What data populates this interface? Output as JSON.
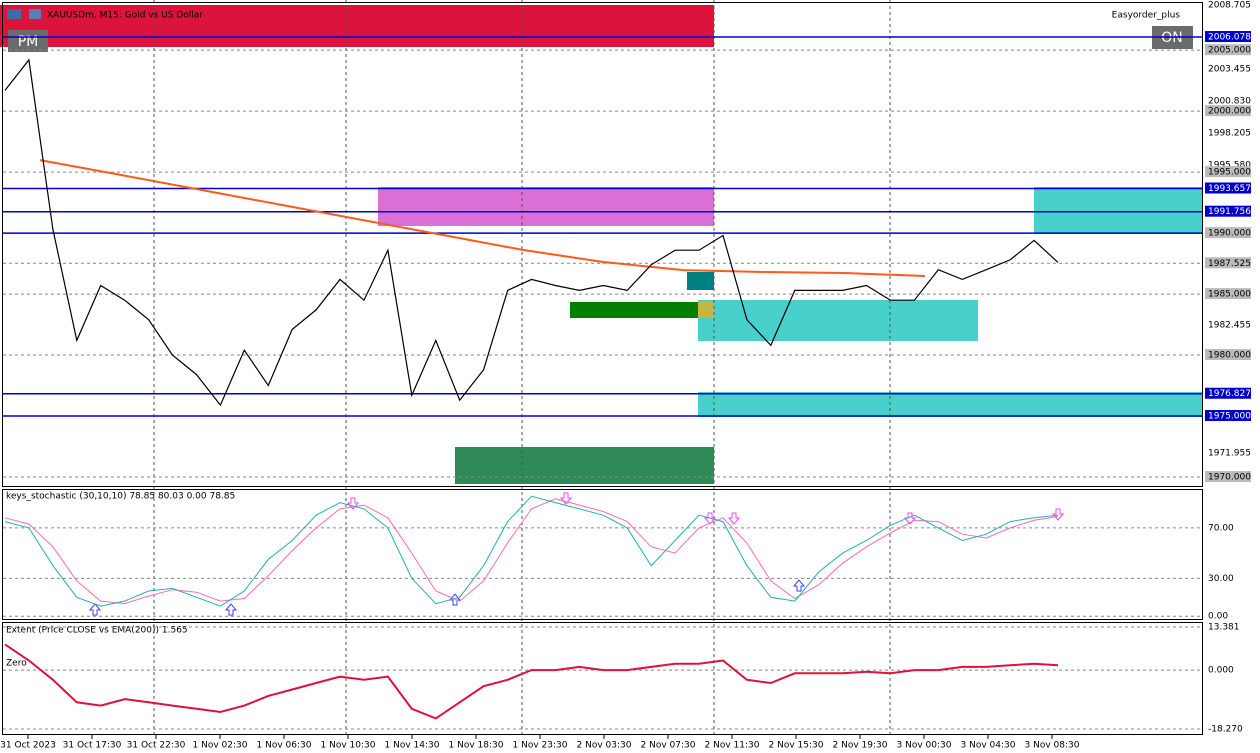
{
  "header": {
    "symbol": "XAUUSDm, M15:  Gold vs US Dollar",
    "expert": "Easyorder_plus",
    "left_button": "PM",
    "right_button": "ON"
  },
  "main_panel": {
    "ylim": [
      1969.18,
      2009.115
    ],
    "price_labels": [
      {
        "value": 2008.705,
        "label": "2008.705"
      },
      {
        "value": 2006.078,
        "label": "2006.078"
      },
      {
        "value": 2005,
        "label": "2005.000"
      },
      {
        "value": 2003.455,
        "label": "2003.455"
      },
      {
        "value": 2000.83,
        "label": "2000.830"
      },
      {
        "value": 2000,
        "label": "2000.000"
      },
      {
        "value": 1998.205,
        "label": "1998.205"
      },
      {
        "value": 1995.58,
        "label": "1995.580"
      },
      {
        "value": 1995,
        "label": "1995.000"
      },
      {
        "value": 1993.657,
        "label": "1993.657"
      },
      {
        "value": 1991.756,
        "label": "1991.756"
      },
      {
        "value": 1990,
        "label": "1990.000"
      },
      {
        "value": 1987.525,
        "label": "1987.525"
      },
      {
        "value": 1985,
        "label": "1985.000"
      },
      {
        "value": 1982.455,
        "label": "1982.455"
      },
      {
        "value": 1980,
        "label": "1980.000"
      },
      {
        "value": 1976.827,
        "label": "1976.827"
      },
      {
        "value": 1975,
        "label": "1975.000"
      },
      {
        "value": 1971.955,
        "label": "1971.955"
      },
      {
        "value": 1970,
        "label": "1970.000"
      }
    ],
    "close": [
      2001.7,
      2004.2,
      1990.3,
      1981.2,
      1985.7,
      1984.5,
      1982.9,
      1980.0,
      1978.4,
      1975.9,
      1980.4,
      1977.5,
      1982.1,
      1983.7,
      1986.2,
      1984.5,
      1988.6,
      1976.7,
      1981.2,
      1976.3,
      1978.8,
      1985.3,
      1986.2,
      1985.7,
      1985.3,
      1985.7,
      1985.3,
      1987.4,
      1988.6,
      1988.6,
      1989.8,
      1982.9,
      1980.8,
      1985.3,
      1985.3,
      1985.3,
      1985.7,
      1984.5,
      1984.5,
      1987.0,
      1986.2,
      1987.0,
      1987.8,
      1989.4,
      1987.6
    ],
    "ema": [
      1995.99,
      1994.77,
      1993.54,
      1992.31,
      1991.08,
      1989.85,
      1988.62,
      1987.63,
      1986.97,
      1986.81,
      1986.73,
      1986.48
    ]
  },
  "stochastic_panel": {
    "title": "keys_stochastic (30,10,10) 78.85 80.03 0.00 78.85",
    "ylim": [
      -3,
      100
    ],
    "ticks": [
      {
        "value": 70,
        "label": "70.00"
      },
      {
        "value": 30,
        "label": "30.00"
      },
      {
        "value": 0,
        "label": "0.00"
      }
    ],
    "main": [
      75,
      70,
      40,
      15,
      8,
      12,
      20,
      22,
      15,
      8,
      20,
      45,
      60,
      80,
      90,
      85,
      70,
      30,
      10,
      15,
      40,
      75,
      95,
      90,
      85,
      80,
      70,
      40,
      60,
      80,
      75,
      40,
      15,
      12,
      35,
      50,
      60,
      72,
      80,
      70,
      60,
      65,
      75,
      78,
      80
    ],
    "signal": [
      78,
      73,
      55,
      28,
      12,
      10,
      16,
      21,
      19,
      12,
      14,
      32,
      52,
      70,
      85,
      88,
      78,
      50,
      20,
      12,
      28,
      58,
      85,
      93,
      88,
      83,
      75,
      55,
      50,
      70,
      78,
      58,
      28,
      14,
      25,
      42,
      55,
      66,
      76,
      75,
      65,
      62,
      70,
      76,
      79
    ]
  },
  "extent_panel": {
    "title": "Extent (Price CLOSE vs EMA(200)) 1.565",
    "zero_label": "Zero",
    "ylim": [
      -20.14,
      14.63
    ],
    "ticks": [
      {
        "value": 13.381,
        "label": "13.381"
      },
      {
        "value": 0,
        "label": "0.000"
      },
      {
        "value": -18.27,
        "label": "-18.270"
      }
    ],
    "values": [
      8,
      3,
      -3,
      -10,
      -11,
      -9,
      -10,
      -11,
      -12,
      -13,
      -11,
      -8,
      -6,
      -4,
      -2,
      -3,
      -2,
      -12,
      -15,
      -10,
      -5,
      -3,
      0,
      0,
      1,
      0,
      0,
      1,
      2,
      2,
      3,
      -3,
      -4,
      -1,
      -1,
      -1,
      -0.5,
      -1,
      0,
      0,
      1,
      1,
      1.5,
      2,
      1.5
    ]
  },
  "time_axis": [
    "31 Oct 2023",
    "31 Oct 17:30",
    "31 Oct 22:30",
    "1 Nov 02:30",
    "1 Nov 06:30",
    "1 Nov 10:30",
    "1 Nov 14:30",
    "1 Nov 18:30",
    "1 Nov 23:30",
    "2 Nov 03:30",
    "2 Nov 07:30",
    "2 Nov 11:30",
    "2 Nov 15:30",
    "2 Nov 19:30",
    "3 Nov 00:30",
    "3 Nov 04:30",
    "3 Nov 08:30"
  ]
}
